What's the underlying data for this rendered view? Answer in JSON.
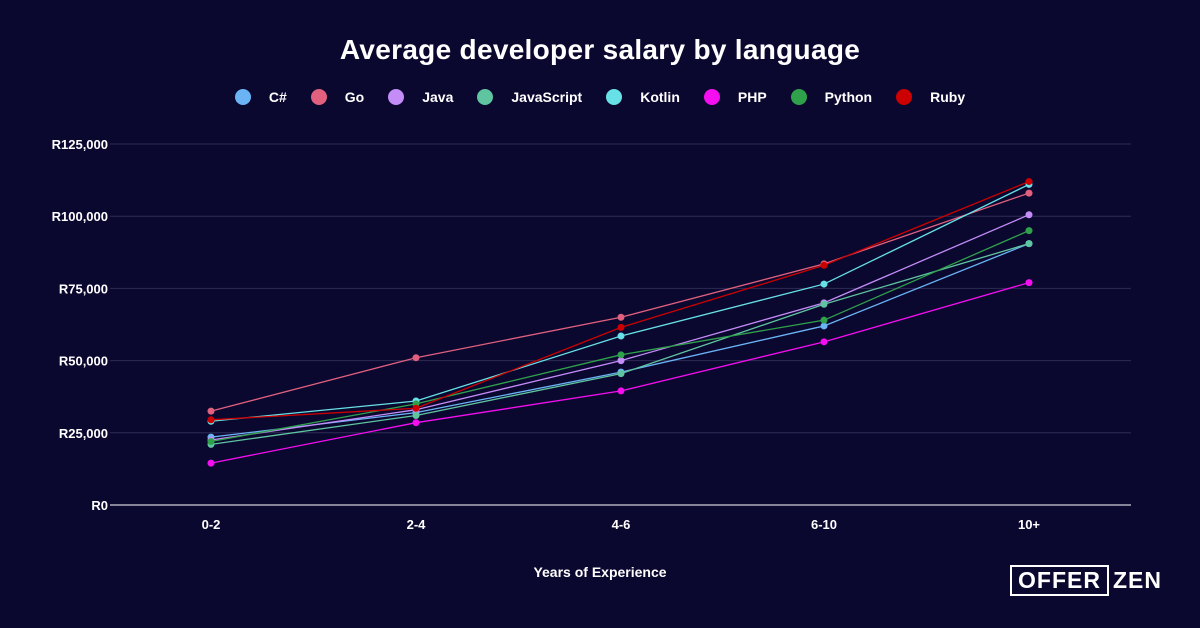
{
  "chart_data": {
    "type": "line",
    "title": "Average developer salary by language",
    "xlabel": "Years of Experience",
    "ylabel": "",
    "categories": [
      "0-2",
      "2-4",
      "4-6",
      "6-10",
      "10+"
    ],
    "ylim": [
      0,
      125000
    ],
    "yticks": [
      0,
      25000,
      50000,
      75000,
      100000,
      125000
    ],
    "ytick_labels": [
      "R0",
      "R25,000",
      "R50,000",
      "R75,000",
      "R100,000",
      "R125,000"
    ],
    "grid": true,
    "legend_position": "top-center",
    "series": [
      {
        "name": "C#",
        "color": "#6ab4f5",
        "values": [
          23500,
          32000,
          46000,
          62000,
          90500
        ]
      },
      {
        "name": "Go",
        "color": "#e0607e",
        "values": [
          32500,
          51000,
          65000,
          83500,
          108000
        ]
      },
      {
        "name": "Java",
        "color": "#c48cf7",
        "values": [
          22500,
          33000,
          50000,
          70000,
          100500
        ]
      },
      {
        "name": "JavaScript",
        "color": "#5fc4a0",
        "values": [
          21000,
          31000,
          45500,
          69500,
          90500
        ]
      },
      {
        "name": "Kotlin",
        "color": "#67e1e6",
        "values": [
          29000,
          36000,
          58500,
          76500,
          111000
        ]
      },
      {
        "name": "PHP",
        "color": "#f50ef0",
        "values": [
          14500,
          28500,
          39500,
          56500,
          77000
        ]
      },
      {
        "name": "Python",
        "color": "#2fa14a",
        "values": [
          22000,
          35000,
          52000,
          64000,
          95000
        ]
      },
      {
        "name": "Ruby",
        "color": "#cc0000",
        "values": [
          29500,
          33500,
          61500,
          83000,
          112000
        ]
      }
    ]
  },
  "logo": {
    "boxed": "OFFER",
    "text": "ZEN"
  }
}
